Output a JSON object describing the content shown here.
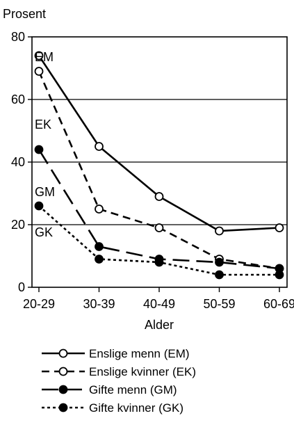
{
  "chart_data": {
    "type": "line",
    "title": "",
    "ylabel": "Prosent",
    "xlabel": "Alder",
    "categories": [
      "20-29",
      "30-39",
      "40-49",
      "50-59",
      "60-69"
    ],
    "ylim": [
      0,
      80
    ],
    "yticks": [
      0,
      20,
      40,
      60,
      80
    ],
    "grid": "horizontal",
    "legend_placement": "bottom",
    "series": [
      {
        "name": "Enslige menn (EM)",
        "tag": "EM",
        "values": [
          74,
          45,
          29,
          18,
          19
        ],
        "dash": "solid",
        "marker": "open-circle"
      },
      {
        "name": "Enslige kvinner (EK)",
        "tag": "EK",
        "values": [
          69,
          25,
          19,
          9,
          6
        ],
        "dash": "short-dash",
        "marker": "open-circle"
      },
      {
        "name": "Gifte menn (GM)",
        "tag": "GM",
        "values": [
          44,
          13,
          9,
          8,
          6
        ],
        "dash": "long-dash",
        "marker": "filled-circle"
      },
      {
        "name": "Gifte kvinner (GK)",
        "tag": "GK",
        "values": [
          26,
          9,
          8,
          4,
          4
        ],
        "dash": "dotted",
        "marker": "filled-circle"
      }
    ]
  }
}
